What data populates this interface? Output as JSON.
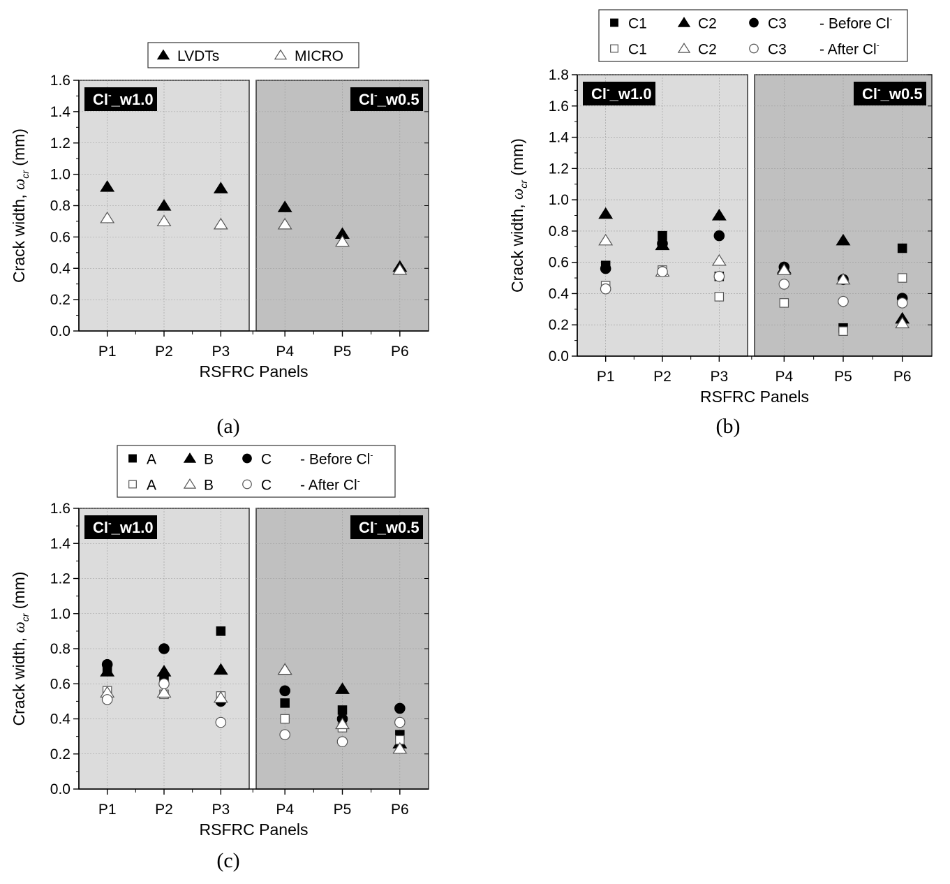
{
  "chart_data": [
    {
      "id": "a",
      "type": "scatter",
      "caption": "(a)",
      "xlabel": "RSFRC Panels",
      "ylabel_main": "Crack width, ",
      "ylabel_symbol": "ω",
      "ylabel_sub": "cr",
      "ylabel_unit": "(mm)",
      "ylim": [
        0,
        1.6
      ],
      "yticks": [
        "0.0",
        "0.2",
        "0.4",
        "0.6",
        "0.8",
        "1.0",
        "1.2",
        "1.4",
        "1.6"
      ],
      "categories": [
        "P1",
        "P2",
        "P3",
        "P4",
        "P5",
        "P6"
      ],
      "regions": [
        {
          "label_prefix": "Cl",
          "label_sup": "-",
          "label_suffix": "_w1.0",
          "color": "#dcdcdc",
          "badge_side": "left",
          "categories": [
            "P1",
            "P2",
            "P3"
          ]
        },
        {
          "label_prefix": "Cl",
          "label_sup": "-",
          "label_suffix": "_w0.5",
          "color": "#c0c0c0",
          "badge_side": "right",
          "categories": [
            "P4",
            "P5",
            "P6"
          ]
        }
      ],
      "legend_rows": [
        [
          {
            "name": "LVDTs",
            "marker": "triangle",
            "filled": true
          },
          {
            "name": "MICRO",
            "marker": "triangle",
            "filled": false
          }
        ]
      ],
      "series": [
        {
          "name": "LVDTs",
          "marker": "triangle",
          "filled": true,
          "values": [
            0.92,
            0.8,
            0.91,
            0.79,
            0.62,
            0.41
          ]
        },
        {
          "name": "MICRO",
          "marker": "triangle",
          "filled": false,
          "values": [
            0.72,
            0.7,
            0.68,
            0.68,
            0.57,
            0.39
          ]
        }
      ]
    },
    {
      "id": "b",
      "type": "scatter",
      "caption": "(b)",
      "xlabel": "RSFRC Panels",
      "ylabel_main": "Crack width, ",
      "ylabel_symbol": "ω",
      "ylabel_sub": "cr",
      "ylabel_unit": "(mm)",
      "ylim": [
        0,
        1.8
      ],
      "yticks": [
        "0.0",
        "0.2",
        "0.4",
        "0.6",
        "0.8",
        "1.0",
        "1.2",
        "1.4",
        "1.6",
        "1.8"
      ],
      "categories": [
        "P1",
        "P2",
        "P3",
        "P4",
        "P5",
        "P6"
      ],
      "regions": [
        {
          "label_prefix": "Cl",
          "label_sup": "-",
          "label_suffix": "_w1.0",
          "color": "#dcdcdc",
          "badge_side": "left",
          "categories": [
            "P1",
            "P2",
            "P3"
          ]
        },
        {
          "label_prefix": "Cl",
          "label_sup": "-",
          "label_suffix": "_w0.5",
          "color": "#c0c0c0",
          "badge_side": "right",
          "categories": [
            "P4",
            "P5",
            "P6"
          ]
        }
      ],
      "legend_rows": [
        [
          {
            "name": "C1",
            "marker": "square",
            "filled": true
          },
          {
            "name": "C2",
            "marker": "triangle",
            "filled": true
          },
          {
            "name": "C3",
            "marker": "circle",
            "filled": true
          },
          {
            "name": "- Before Cl",
            "sup": "-",
            "marker": "none"
          }
        ],
        [
          {
            "name": "C1",
            "marker": "square",
            "filled": false
          },
          {
            "name": "C2",
            "marker": "triangle",
            "filled": false
          },
          {
            "name": "C3",
            "marker": "circle",
            "filled": false
          },
          {
            "name": "- After Cl",
            "sup": "-",
            "marker": "none"
          }
        ]
      ],
      "series": [
        {
          "name": "C1 Before Cl-",
          "marker": "square",
          "filled": true,
          "values": [
            0.58,
            0.77,
            0.51,
            0.55,
            0.18,
            0.69
          ]
        },
        {
          "name": "C2 Before Cl-",
          "marker": "triangle",
          "filled": true,
          "values": [
            0.91,
            0.71,
            0.9,
            0.56,
            0.74,
            0.24
          ]
        },
        {
          "name": "C3 Before Cl-",
          "marker": "circle",
          "filled": true,
          "values": [
            0.56,
            0.72,
            0.77,
            0.57,
            0.49,
            0.37
          ]
        },
        {
          "name": "C1 After Cl-",
          "marker": "square",
          "filled": false,
          "values": [
            0.45,
            0.55,
            0.38,
            0.34,
            0.16,
            0.5
          ]
        },
        {
          "name": "C2 After Cl-",
          "marker": "triangle",
          "filled": false,
          "values": [
            0.74,
            0.54,
            0.61,
            0.55,
            0.49,
            0.21
          ]
        },
        {
          "name": "C3 After Cl-",
          "marker": "circle",
          "filled": false,
          "values": [
            0.43,
            0.54,
            0.51,
            0.46,
            0.35,
            0.34
          ]
        }
      ]
    },
    {
      "id": "c",
      "type": "scatter",
      "caption": "(c)",
      "xlabel": "RSFRC Panels",
      "ylabel_main": "Crack width, ",
      "ylabel_symbol": "ω",
      "ylabel_sub": "cr",
      "ylabel_unit": "(mm)",
      "ylim": [
        0,
        1.6
      ],
      "yticks": [
        "0.0",
        "0.2",
        "0.4",
        "0.6",
        "0.8",
        "1.0",
        "1.2",
        "1.4",
        "1.6"
      ],
      "categories": [
        "P1",
        "P2",
        "P3",
        "P4",
        "P5",
        "P6"
      ],
      "regions": [
        {
          "label_prefix": "Cl",
          "label_sup": "-",
          "label_suffix": "_w1.0",
          "color": "#dcdcdc",
          "badge_side": "left",
          "categories": [
            "P1",
            "P2",
            "P3"
          ]
        },
        {
          "label_prefix": "Cl",
          "label_sup": "-",
          "label_suffix": "_w0.5",
          "color": "#c0c0c0",
          "badge_side": "right",
          "categories": [
            "P4",
            "P5",
            "P6"
          ]
        }
      ],
      "legend_rows": [
        [
          {
            "name": "A",
            "marker": "square",
            "filled": true
          },
          {
            "name": "B",
            "marker": "triangle",
            "filled": true
          },
          {
            "name": "C",
            "marker": "circle",
            "filled": true
          },
          {
            "name": "- Before Cl",
            "sup": "-",
            "marker": "none"
          }
        ],
        [
          {
            "name": "A",
            "marker": "square",
            "filled": false
          },
          {
            "name": "B",
            "marker": "triangle",
            "filled": false
          },
          {
            "name": "C",
            "marker": "circle",
            "filled": false
          },
          {
            "name": "- After Cl",
            "sup": "-",
            "marker": "none"
          }
        ]
      ],
      "series": [
        {
          "name": "A Before Cl-",
          "marker": "square",
          "filled": true,
          "values": [
            0.67,
            0.62,
            0.9,
            0.49,
            0.45,
            0.31
          ]
        },
        {
          "name": "B Before Cl-",
          "marker": "triangle",
          "filled": true,
          "values": [
            0.67,
            0.67,
            0.68,
            0.68,
            0.57,
            0.26
          ]
        },
        {
          "name": "C Before Cl-",
          "marker": "circle",
          "filled": true,
          "values": [
            0.71,
            0.8,
            0.5,
            0.56,
            0.4,
            0.46
          ]
        },
        {
          "name": "A After Cl-",
          "marker": "square",
          "filled": false,
          "values": [
            0.56,
            0.54,
            0.53,
            0.4,
            0.35,
            0.28
          ]
        },
        {
          "name": "B After Cl-",
          "marker": "triangle",
          "filled": false,
          "values": [
            0.55,
            0.55,
            0.52,
            0.68,
            0.37,
            0.23
          ]
        },
        {
          "name": "C After Cl-",
          "marker": "circle",
          "filled": false,
          "values": [
            0.51,
            0.6,
            0.38,
            0.31,
            0.27,
            0.38
          ]
        }
      ]
    }
  ]
}
